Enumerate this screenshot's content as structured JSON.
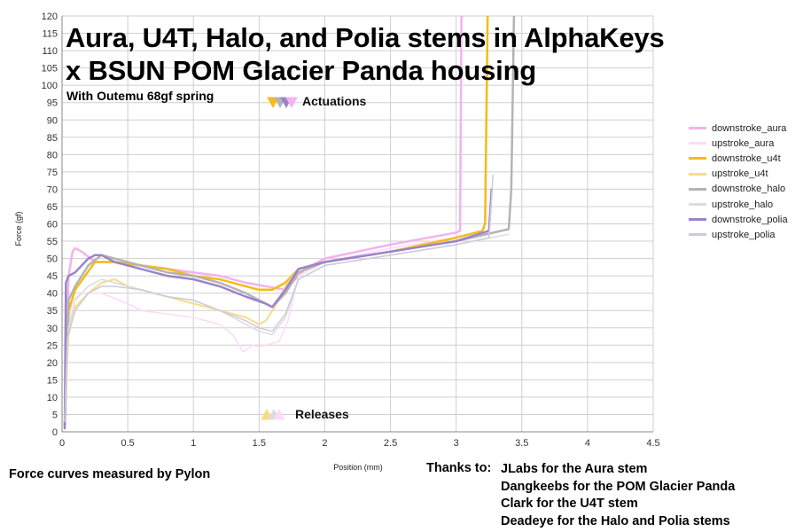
{
  "chart_data": {
    "type": "line",
    "title": "Aura, U4T, Halo, and Polia stems in AlphaKeys x BSUN POM Glacier Panda housing",
    "subtitle": "With Outemu 68gf spring",
    "xlabel": "Position (mm)",
    "ylabel": "Force (gf)",
    "xlim": [
      0,
      4.5
    ],
    "ylim": [
      0,
      120
    ],
    "x_ticks": [
      "0",
      "0.5",
      "1",
      "1.5",
      "2",
      "2.5",
      "3",
      "3.5",
      "4",
      "4.5"
    ],
    "y_ticks": [
      "0",
      "5",
      "10",
      "15",
      "20",
      "25",
      "30",
      "35",
      "40",
      "45",
      "50",
      "55",
      "60",
      "65",
      "70",
      "75",
      "80",
      "85",
      "90",
      "95",
      "100",
      "105",
      "110",
      "115",
      "120"
    ],
    "grid": true,
    "legend_position": "right",
    "annotations": [
      {
        "text": "Actuations",
        "x": 1.85,
        "y": 97.3
      },
      {
        "text": "Releases",
        "x": 1.75,
        "y": 6.3
      }
    ],
    "series": [
      {
        "name": "downstroke_aura",
        "color": "#f2b3f0",
        "width": 2.5,
        "x": [
          0.02,
          0.05,
          0.08,
          0.1,
          0.15,
          0.25,
          0.4,
          0.6,
          0.8,
          1.0,
          1.2,
          1.4,
          1.55,
          1.7,
          1.85,
          2.0,
          2.5,
          3.0,
          3.03,
          3.04,
          3.05
        ],
        "y": [
          1,
          45,
          52,
          53,
          52,
          49,
          49,
          48,
          47,
          46,
          45,
          43,
          42,
          41,
          47,
          50,
          54,
          57.5,
          58,
          120,
          120
        ]
      },
      {
        "name": "upstroke_aura",
        "color": "#fadcf8",
        "width": 1.5,
        "x": [
          0.03,
          0.05,
          0.08,
          0.15,
          0.3,
          0.5,
          0.6,
          0.8,
          1.0,
          1.2,
          1.3,
          1.38,
          1.45,
          1.5,
          1.55,
          1.65,
          1.72,
          1.8,
          2.0,
          2.5,
          3.0,
          3.03
        ],
        "y": [
          22,
          32,
          38,
          40,
          40,
          37,
          35,
          34,
          33,
          31,
          28,
          23,
          25,
          24.5,
          25,
          26,
          32,
          45,
          49,
          53,
          56,
          57
        ]
      },
      {
        "name": "downstroke_u4t",
        "color": "#f5bb16",
        "width": 2.5,
        "x": [
          0.02,
          0.05,
          0.1,
          0.25,
          0.4,
          0.6,
          0.8,
          1.0,
          1.2,
          1.4,
          1.5,
          1.6,
          1.7,
          1.8,
          2.0,
          2.5,
          3.0,
          3.2,
          3.22,
          3.24
        ],
        "y": [
          2,
          35,
          41,
          49,
          49,
          48,
          47,
          45,
          44,
          42,
          41,
          41,
          43,
          47,
          49,
          52,
          56,
          58,
          60,
          120
        ]
      },
      {
        "name": "upstroke_u4t",
        "color": "#f5dd88",
        "width": 2,
        "x": [
          0.02,
          0.05,
          0.1,
          0.2,
          0.3,
          0.4,
          0.5,
          0.7,
          1.0,
          1.2,
          1.4,
          1.5,
          1.55,
          1.62,
          1.7,
          1.8,
          2.0,
          2.5,
          3.0,
          3.2
        ],
        "y": [
          5,
          28,
          36,
          40,
          43,
          44,
          42,
          40,
          37,
          35,
          33,
          31,
          32,
          36,
          42,
          47,
          49,
          52,
          55,
          57
        ]
      },
      {
        "name": "downstroke_halo",
        "color": "#b4b4b4",
        "width": 2.5,
        "x": [
          0.02,
          0.05,
          0.1,
          0.2,
          0.3,
          0.4,
          0.6,
          0.8,
          1.0,
          1.2,
          1.4,
          1.5,
          1.55,
          1.6,
          1.7,
          1.8,
          2.0,
          2.5,
          3.0,
          3.4,
          3.42,
          3.44
        ],
        "y": [
          2,
          38,
          42,
          48,
          51,
          50,
          48,
          46,
          45,
          43,
          40,
          38,
          37,
          36,
          40,
          46,
          49,
          52,
          55,
          58.5,
          70,
          120
        ]
      },
      {
        "name": "upstroke_halo",
        "color": "#dcdcdc",
        "width": 1.5,
        "x": [
          0.02,
          0.05,
          0.1,
          0.2,
          0.3,
          0.4,
          0.6,
          0.8,
          1.0,
          1.2,
          1.4,
          1.5,
          1.6,
          1.7,
          1.8,
          2.0,
          2.5,
          3.0,
          3.4
        ],
        "y": [
          4,
          30,
          38,
          42,
          44,
          43,
          41,
          39,
          38,
          35,
          31,
          29,
          28,
          33,
          44,
          48,
          51,
          54,
          57
        ]
      },
      {
        "name": "downstroke_polia",
        "color": "#9b84c8",
        "width": 2.5,
        "x": [
          0.02,
          0.03,
          0.05,
          0.1,
          0.2,
          0.25,
          0.3,
          0.4,
          0.6,
          0.8,
          1.0,
          1.2,
          1.4,
          1.55,
          1.6,
          1.7,
          1.8,
          2.0,
          2.5,
          3.0,
          3.25,
          3.27
        ],
        "y": [
          1,
          43,
          45,
          46,
          50,
          51,
          51,
          49,
          47,
          45,
          44,
          42,
          39,
          37,
          36,
          41,
          47,
          49,
          52,
          55,
          58,
          70
        ]
      },
      {
        "name": "upstroke_polia",
        "color": "#cfc9de",
        "width": 1.5,
        "x": [
          0.02,
          0.04,
          0.1,
          0.2,
          0.3,
          0.4,
          0.6,
          0.8,
          1.0,
          1.2,
          1.4,
          1.5,
          1.6,
          1.7,
          1.8,
          2.0,
          2.5,
          3.0,
          3.25,
          3.28
        ],
        "y": [
          3,
          27,
          35,
          40,
          42,
          42,
          41,
          39,
          38,
          35,
          32,
          30,
          29,
          34,
          44,
          48,
          51,
          54,
          56,
          74
        ]
      }
    ]
  },
  "footer": {
    "credit": "Force curves measured by Pylon",
    "thanks_label": "Thanks to:",
    "thanks": [
      "JLabs for the Aura stem",
      "Dangkeebs for the POM Glacier Panda",
      "Clark for the U4T stem",
      "Deadeye for the Halo and Polia stems"
    ]
  }
}
